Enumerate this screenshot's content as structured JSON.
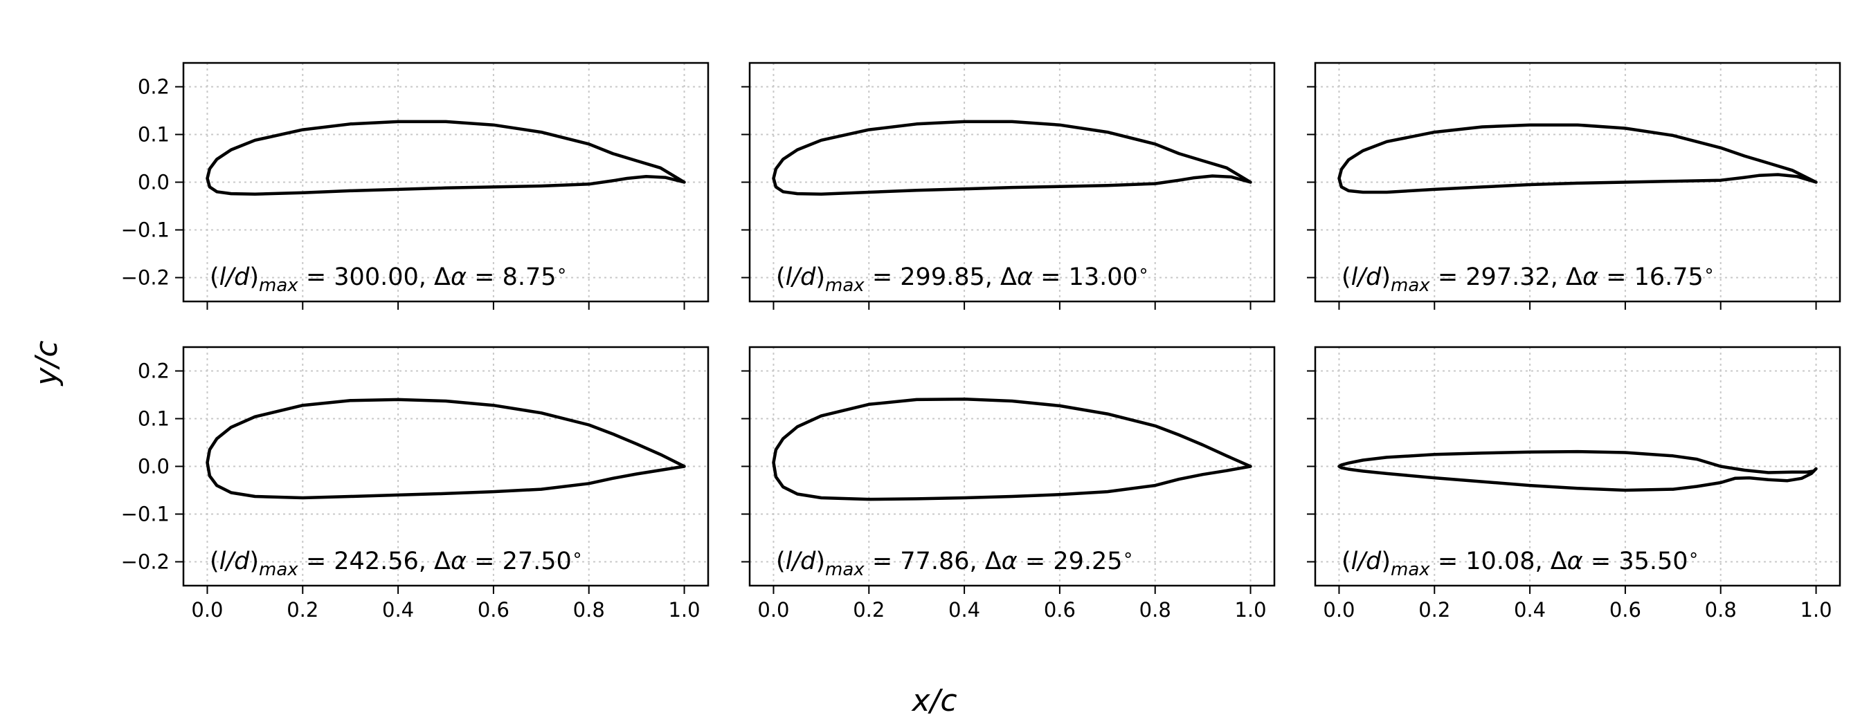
{
  "figure": {
    "xlabel": "x/c",
    "ylabel": "y/c"
  },
  "chart_data": [
    {
      "type": "line",
      "annotation": "(l/d)max = 300.00, Δα = 8.75°",
      "l_over_d_max": "300.00",
      "delta_alpha": "8.75",
      "xlim": [
        -0.05,
        1.05
      ],
      "ylim": [
        -0.25,
        0.25
      ],
      "xticks": [
        "0.0",
        "0.2",
        "0.4",
        "0.6",
        "0.8",
        "1.0"
      ],
      "yticks": [
        "−0.2",
        "−0.1",
        "0.0",
        "0.1",
        "0.2"
      ],
      "grid": true,
      "series": [
        {
          "x": [
            1.0,
            0.95,
            0.9,
            0.85,
            0.8,
            0.7,
            0.6,
            0.5,
            0.4,
            0.3,
            0.2,
            0.1,
            0.05,
            0.02,
            0.005,
            0.0,
            0.005,
            0.02,
            0.05,
            0.1,
            0.2,
            0.3,
            0.4,
            0.5,
            0.6,
            0.7,
            0.8,
            0.85,
            0.88,
            0.92,
            0.96,
            1.0
          ],
          "y": [
            0.0,
            0.03,
            0.045,
            0.06,
            0.08,
            0.105,
            0.12,
            0.127,
            0.127,
            0.122,
            0.11,
            0.088,
            0.068,
            0.048,
            0.028,
            0.008,
            -0.01,
            -0.02,
            -0.024,
            -0.025,
            -0.022,
            -0.018,
            -0.015,
            -0.012,
            -0.01,
            -0.008,
            -0.004,
            0.003,
            0.008,
            0.012,
            0.01,
            0.0
          ]
        }
      ]
    },
    {
      "type": "line",
      "annotation": "(l/d)max = 299.85, Δα = 13.00°",
      "l_over_d_max": "299.85",
      "delta_alpha": "13.00",
      "xlim": [
        -0.05,
        1.05
      ],
      "ylim": [
        -0.25,
        0.25
      ],
      "xticks": [
        "0.0",
        "0.2",
        "0.4",
        "0.6",
        "0.8",
        "1.0"
      ],
      "yticks": [
        "−0.2",
        "−0.1",
        "0.0",
        "0.1",
        "0.2"
      ],
      "grid": true,
      "series": [
        {
          "x": [
            1.0,
            0.95,
            0.9,
            0.85,
            0.8,
            0.7,
            0.6,
            0.5,
            0.4,
            0.3,
            0.2,
            0.1,
            0.05,
            0.02,
            0.005,
            0.0,
            0.005,
            0.02,
            0.05,
            0.1,
            0.2,
            0.3,
            0.4,
            0.5,
            0.6,
            0.7,
            0.8,
            0.85,
            0.88,
            0.92,
            0.96,
            1.0
          ],
          "y": [
            0.0,
            0.03,
            0.045,
            0.06,
            0.08,
            0.105,
            0.12,
            0.127,
            0.127,
            0.122,
            0.11,
            0.088,
            0.068,
            0.048,
            0.028,
            0.008,
            -0.01,
            -0.02,
            -0.024,
            -0.025,
            -0.021,
            -0.017,
            -0.014,
            -0.011,
            -0.009,
            -0.007,
            -0.003,
            0.004,
            0.009,
            0.013,
            0.011,
            0.0
          ]
        }
      ]
    },
    {
      "type": "line",
      "annotation": "(l/d)max = 297.32, Δα = 16.75°",
      "l_over_d_max": "297.32",
      "delta_alpha": "16.75",
      "xlim": [
        -0.05,
        1.05
      ],
      "ylim": [
        -0.25,
        0.25
      ],
      "xticks": [
        "0.0",
        "0.2",
        "0.4",
        "0.6",
        "0.8",
        "1.0"
      ],
      "yticks": [
        "−0.2",
        "−0.1",
        "0.0",
        "0.1",
        "0.2"
      ],
      "grid": true,
      "series": [
        {
          "x": [
            1.0,
            0.95,
            0.9,
            0.85,
            0.8,
            0.7,
            0.6,
            0.5,
            0.4,
            0.3,
            0.2,
            0.1,
            0.05,
            0.02,
            0.005,
            0.0,
            0.005,
            0.02,
            0.05,
            0.1,
            0.2,
            0.3,
            0.4,
            0.5,
            0.6,
            0.7,
            0.8,
            0.85,
            0.88,
            0.92,
            0.96,
            1.0
          ],
          "y": [
            0.0,
            0.025,
            0.04,
            0.055,
            0.072,
            0.098,
            0.113,
            0.12,
            0.12,
            0.116,
            0.105,
            0.085,
            0.066,
            0.047,
            0.027,
            0.008,
            -0.01,
            -0.018,
            -0.021,
            -0.021,
            -0.015,
            -0.01,
            -0.005,
            -0.002,
            0.0,
            0.002,
            0.004,
            0.01,
            0.014,
            0.016,
            0.012,
            0.0
          ]
        }
      ]
    },
    {
      "type": "line",
      "annotation": "(l/d)max = 242.56, Δα = 27.50°",
      "l_over_d_max": "242.56",
      "delta_alpha": "27.50",
      "xlim": [
        -0.05,
        1.05
      ],
      "ylim": [
        -0.25,
        0.25
      ],
      "xticks": [
        "0.0",
        "0.2",
        "0.4",
        "0.6",
        "0.8",
        "1.0"
      ],
      "yticks": [
        "−0.2",
        "−0.1",
        "0.0",
        "0.1",
        "0.2"
      ],
      "grid": true,
      "series": [
        {
          "x": [
            1.0,
            0.95,
            0.9,
            0.85,
            0.8,
            0.7,
            0.6,
            0.5,
            0.4,
            0.3,
            0.2,
            0.1,
            0.05,
            0.02,
            0.005,
            0.0,
            0.005,
            0.02,
            0.05,
            0.1,
            0.2,
            0.3,
            0.4,
            0.5,
            0.6,
            0.7,
            0.8,
            0.85,
            0.9,
            0.95,
            1.0
          ],
          "y": [
            0.0,
            0.025,
            0.047,
            0.068,
            0.087,
            0.112,
            0.128,
            0.137,
            0.14,
            0.138,
            0.128,
            0.104,
            0.082,
            0.058,
            0.035,
            0.008,
            -0.02,
            -0.04,
            -0.055,
            -0.063,
            -0.066,
            -0.063,
            -0.06,
            -0.057,
            -0.053,
            -0.048,
            -0.036,
            -0.025,
            -0.016,
            -0.008,
            0.0
          ]
        }
      ]
    },
    {
      "type": "line",
      "annotation": "(l/d)max = 77.86, Δα = 29.25°",
      "l_over_d_max": "77.86",
      "delta_alpha": "29.25",
      "xlim": [
        -0.05,
        1.05
      ],
      "ylim": [
        -0.25,
        0.25
      ],
      "xticks": [
        "0.0",
        "0.2",
        "0.4",
        "0.6",
        "0.8",
        "1.0"
      ],
      "yticks": [
        "−0.2",
        "−0.1",
        "0.0",
        "0.1",
        "0.2"
      ],
      "grid": true,
      "series": [
        {
          "x": [
            1.0,
            0.95,
            0.9,
            0.85,
            0.8,
            0.7,
            0.6,
            0.5,
            0.4,
            0.3,
            0.2,
            0.1,
            0.05,
            0.02,
            0.005,
            0.0,
            0.005,
            0.02,
            0.05,
            0.1,
            0.2,
            0.3,
            0.4,
            0.5,
            0.6,
            0.7,
            0.8,
            0.85,
            0.9,
            0.95,
            1.0
          ],
          "y": [
            0.0,
            0.022,
            0.045,
            0.066,
            0.085,
            0.11,
            0.127,
            0.137,
            0.141,
            0.14,
            0.13,
            0.106,
            0.083,
            0.058,
            0.035,
            0.008,
            -0.022,
            -0.043,
            -0.058,
            -0.066,
            -0.069,
            -0.068,
            -0.066,
            -0.063,
            -0.059,
            -0.053,
            -0.04,
            -0.027,
            -0.017,
            -0.009,
            0.0
          ]
        }
      ]
    },
    {
      "type": "line",
      "annotation": "(l/d)max = 10.08, Δα = 35.50°",
      "l_over_d_max": "10.08",
      "delta_alpha": "35.50",
      "xlim": [
        -0.05,
        1.05
      ],
      "ylim": [
        -0.25,
        0.25
      ],
      "xticks": [
        "0.0",
        "0.2",
        "0.4",
        "0.6",
        "0.8",
        "1.0"
      ],
      "yticks": [
        "−0.2",
        "−0.1",
        "0.0",
        "0.1",
        "0.2"
      ],
      "grid": true,
      "series": [
        {
          "x": [
            0.995,
            0.98,
            0.95,
            0.9,
            0.85,
            0.8,
            0.75,
            0.7,
            0.6,
            0.5,
            0.4,
            0.3,
            0.2,
            0.1,
            0.05,
            0.02,
            0.005,
            0.0,
            0.005,
            0.02,
            0.05,
            0.1,
            0.2,
            0.3,
            0.4,
            0.5,
            0.6,
            0.7,
            0.75,
            0.8,
            0.83,
            0.86,
            0.9,
            0.94,
            0.97,
            0.99,
            1.0,
            0.995
          ],
          "y": [
            -0.01,
            -0.012,
            -0.012,
            -0.013,
            -0.008,
            0.0,
            0.015,
            0.022,
            0.029,
            0.031,
            0.03,
            0.028,
            0.025,
            0.019,
            0.013,
            0.007,
            0.003,
            0.0,
            -0.003,
            -0.006,
            -0.01,
            -0.015,
            -0.024,
            -0.032,
            -0.04,
            -0.046,
            -0.05,
            -0.048,
            -0.042,
            -0.034,
            -0.025,
            -0.024,
            -0.028,
            -0.03,
            -0.025,
            -0.015,
            -0.005,
            -0.01
          ]
        }
      ]
    }
  ]
}
